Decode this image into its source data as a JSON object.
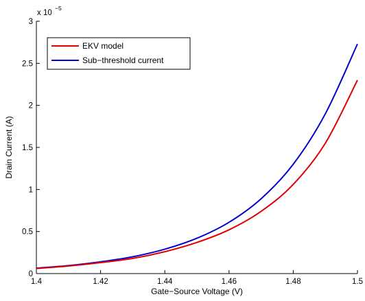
{
  "chart_data": {
    "type": "line",
    "title": "",
    "xlabel": "Gate−Source Voltage (V)",
    "ylabel": "Drain Current (A)",
    "xlim": [
      1.4,
      1.5
    ],
    "ylim": [
      0,
      3
    ],
    "y_exponent_label": "x 10",
    "y_exponent_power": "−5",
    "x_ticks": [
      1.4,
      1.42,
      1.44,
      1.46,
      1.48,
      1.5
    ],
    "x_tick_labels": [
      "1.4",
      "1.42",
      "1.44",
      "1.46",
      "1.48",
      "1.5"
    ],
    "y_ticks": [
      0,
      0.5,
      1,
      1.5,
      2,
      2.5,
      3
    ],
    "y_tick_labels": [
      "0",
      "0.5",
      "1",
      "1.5",
      "2",
      "2.5",
      "3"
    ],
    "grid": false,
    "legend_position": "top-left",
    "x": [
      1.4,
      1.41,
      1.42,
      1.43,
      1.44,
      1.45,
      1.46,
      1.47,
      1.48,
      1.49,
      1.5
    ],
    "series": [
      {
        "name": "EKV model",
        "color": "#e00000",
        "values": [
          0.06,
          0.09,
          0.13,
          0.18,
          0.26,
          0.37,
          0.52,
          0.74,
          1.06,
          1.55,
          2.3
        ]
      },
      {
        "name": "Sub−threshold current",
        "color": "#0000d0",
        "values": [
          0.065,
          0.095,
          0.14,
          0.2,
          0.29,
          0.42,
          0.61,
          0.89,
          1.3,
          1.9,
          2.73
        ]
      }
    ]
  }
}
